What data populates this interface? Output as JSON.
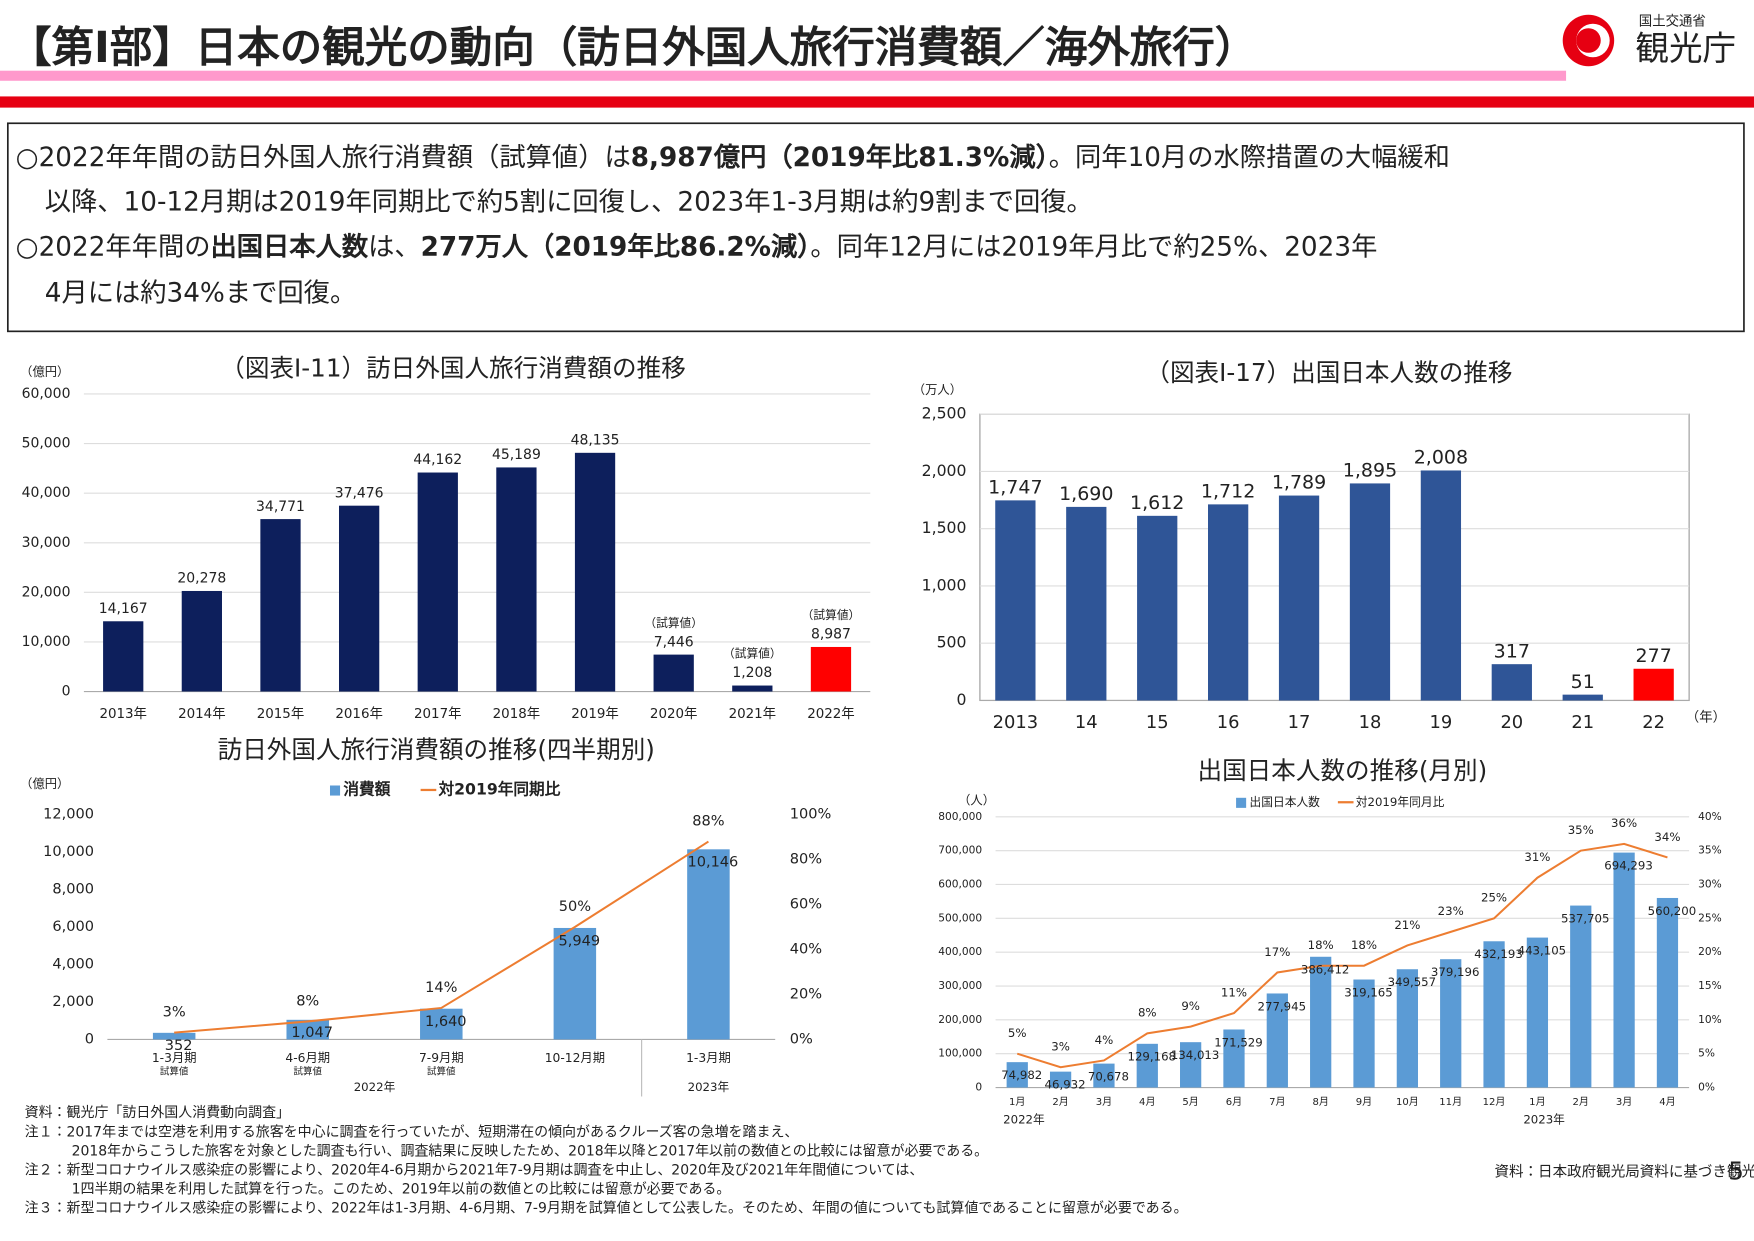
{
  "header": {
    "title": "【第Ⅰ部】日本の観光の動向（訪日外国人旅行消費額／海外旅行）",
    "ministry": "国土交通省",
    "agency": "観光庁"
  },
  "summary": [
    [
      {
        "text": "○2022年年間の訪日外国人旅行消費額（試算値）は"
      },
      {
        "text": "8,987億円（2019年比81.3%減）",
        "bold": true
      },
      {
        "text": "。同年10月の水際措置の大幅緩和"
      }
    ],
    [
      {
        "text": "以降、10-12月期は2019年同期比で約5割に回復し、2023年1-3月期は約9割まで回復。"
      }
    ],
    [
      {
        "text": "○2022年年間の"
      },
      {
        "text": "出国日本人数",
        "bold": true
      },
      {
        "text": "は、"
      },
      {
        "text": "277万人（2019年比86.2%減）",
        "bold": true
      },
      {
        "text": "。同年12月には2019年月比で約25%、2023年"
      }
    ],
    [
      {
        "text": "4月には約34%まで回復。"
      }
    ]
  ],
  "chart_data": [
    {
      "type": "bar",
      "title": "（図表Ⅰ-11）訪日外国人旅行消費額の推移",
      "y_label": "（億円）",
      "categories": [
        "2013年",
        "2014年",
        "2015年",
        "2016年",
        "2017年",
        "2018年",
        "2019年",
        "2020年",
        "2021年",
        "2022年"
      ],
      "values": [
        14167,
        20278,
        34771,
        37476,
        44162,
        45189,
        48135,
        7446,
        1208,
        8987
      ],
      "value_labels": [
        "14,167",
        "20,278",
        "34,771",
        "37,476",
        "44,162",
        "45,189",
        "48,135",
        "7,446",
        "1,208",
        "8,987"
      ],
      "point_notes": [
        null,
        null,
        null,
        null,
        null,
        null,
        null,
        "（試算値）",
        "（試算値）",
        "（試算値）"
      ],
      "colors": [
        "#0d1f5c",
        "#0d1f5c",
        "#0d1f5c",
        "#0d1f5c",
        "#0d1f5c",
        "#0d1f5c",
        "#0d1f5c",
        "#0d1f5c",
        "#0d1f5c",
        "#ff0000"
      ],
      "ylim": [
        0,
        60000
      ],
      "yticks": [
        0,
        {
          "value": 10000,
          "label": "10,000"
        },
        {
          "value": 20000,
          "label": "20,000"
        },
        {
          "value": 30000,
          "label": "30,000"
        },
        {
          "value": 40000,
          "label": "40,000"
        },
        {
          "value": 50000,
          "label": "50,000"
        },
        {
          "value": 60000,
          "label": "60,000"
        }
      ],
      "grid": true
    },
    {
      "type": "combo",
      "title": "訪日外国人旅行消費額の推移(四半期別)",
      "y_label": "（億円）",
      "categories": [
        "1-3月期",
        "4-6月期",
        "7-9月期",
        "10-12月期",
        "1-3月期"
      ],
      "sublabels": [
        "試算値",
        "試算値",
        "試算値",
        null,
        null
      ],
      "group_labels": [
        "2022年",
        null,
        null,
        null,
        "2023年"
      ],
      "series": [
        {
          "name": "消費額",
          "type": "bar",
          "color": "#5b9bd5",
          "values": [
            352,
            1047,
            1640,
            5949,
            10146
          ],
          "value_labels": [
            "352",
            "1,047",
            "1,640",
            "5,949",
            "10,146"
          ]
        },
        {
          "name": "対2019年同期比",
          "type": "line",
          "axis": "y2",
          "color": "#ed7d31",
          "values": [
            3,
            8,
            14,
            50,
            88
          ],
          "value_labels": [
            "3%",
            "8%",
            "14%",
            "50%",
            "88%"
          ]
        }
      ],
      "ylim": [
        0,
        12000
      ],
      "yticks": [
        0,
        {
          "value": 2000,
          "label": "2,000"
        },
        {
          "value": 4000,
          "label": "4,000"
        },
        {
          "value": 6000,
          "label": "6,000"
        },
        {
          "value": 8000,
          "label": "8,000"
        },
        {
          "value": 10000,
          "label": "10,000"
        },
        {
          "value": 12000,
          "label": "12,000"
        }
      ],
      "y2lim": [
        0,
        100
      ],
      "y2ticks": [
        {
          "value": 0,
          "label": "0%"
        },
        {
          "value": 20,
          "label": "20%"
        },
        {
          "value": 40,
          "label": "40%"
        },
        {
          "value": 60,
          "label": "60%"
        },
        {
          "value": 80,
          "label": "80%"
        },
        {
          "value": 100,
          "label": "100%"
        }
      ],
      "grid": false
    },
    {
      "type": "bar",
      "title": "（図表Ⅰ-17）出国日本人数の推移",
      "y_label": "（万人）",
      "x_label": "（年）",
      "categories": [
        "2013",
        "14",
        "15",
        "16",
        "17",
        "18",
        "19",
        "20",
        "21",
        "22"
      ],
      "values": [
        1747,
        1690,
        1612,
        1712,
        1789,
        1895,
        2008,
        317,
        51,
        277
      ],
      "value_labels": [
        "1,747",
        "1,690",
        "1,612",
        "1,712",
        "1,789",
        "1,895",
        "2,008",
        "317",
        "51",
        "277"
      ],
      "colors": [
        "#2f5597",
        "#2f5597",
        "#2f5597",
        "#2f5597",
        "#2f5597",
        "#2f5597",
        "#2f5597",
        "#2f5597",
        "#2f5597",
        "#ff0000"
      ],
      "ylim": [
        0,
        2500
      ],
      "yticks": [
        0,
        500,
        {
          "value": 1000,
          "label": "1,000"
        },
        {
          "value": 1500,
          "label": "1,500"
        },
        {
          "value": 2000,
          "label": "2,000"
        },
        {
          "value": 2500,
          "label": "2,500"
        }
      ],
      "grid": true
    },
    {
      "type": "combo",
      "title": "出国日本人数の推移(月別)",
      "y_label": "（人）",
      "categories": [
        "1月",
        "2月",
        "3月",
        "4月",
        "5月",
        "6月",
        "7月",
        "8月",
        "9月",
        "10月",
        "11月",
        "12月",
        "1月",
        "2月",
        "3月",
        "4月"
      ],
      "group_labels": [
        "2022年",
        null,
        null,
        null,
        null,
        null,
        null,
        null,
        null,
        null,
        null,
        null,
        "2023年",
        null,
        null,
        null
      ],
      "series": [
        {
          "name": "出国日本人数",
          "type": "bar",
          "color": "#5b9bd5",
          "values": [
            74982,
            46932,
            70678,
            129168,
            134013,
            171529,
            277945,
            386412,
            319165,
            349557,
            379196,
            432193,
            443105,
            537705,
            694293,
            560200
          ],
          "value_labels": [
            "74,982",
            "46,932",
            "70,678",
            "129,168",
            "134,013",
            "171,529",
            "277,945",
            "386,412",
            "319,165",
            "349,557",
            "379,196",
            "432,193",
            "443,105",
            "537,705",
            "694,293",
            "560,200"
          ]
        },
        {
          "name": "対2019年同月比",
          "type": "line",
          "axis": "y2",
          "color": "#ed7d31",
          "values": [
            5,
            3,
            4,
            8,
            9,
            11,
            17,
            18,
            18,
            21,
            23,
            25,
            31,
            35,
            36,
            34
          ],
          "value_labels": [
            "5%",
            "3%",
            "4%",
            "8%",
            "9%",
            "11%",
            "17%",
            "18%",
            "18%",
            "21%",
            "23%",
            "25%",
            "31%",
            "35%",
            "36%",
            "34%"
          ]
        }
      ],
      "ylim": [
        0,
        800000
      ],
      "yticks": [
        0,
        {
          "value": 100000,
          "label": "100,000"
        },
        {
          "value": 200000,
          "label": "200,000"
        },
        {
          "value": 300000,
          "label": "300,000"
        },
        {
          "value": 400000,
          "label": "400,000"
        },
        {
          "value": 500000,
          "label": "500,000"
        },
        {
          "value": 600000,
          "label": "600,000"
        },
        {
          "value": 700000,
          "label": "700,000"
        },
        {
          "value": 800000,
          "label": "800,000"
        }
      ],
      "y2lim": [
        0,
        40
      ],
      "y2ticks": [
        {
          "value": 0,
          "label": "0%"
        },
        {
          "value": 5,
          "label": "5%"
        },
        {
          "value": 10,
          "label": "10%"
        },
        {
          "value": 15,
          "label": "15%"
        },
        {
          "value": 20,
          "label": "20%"
        },
        {
          "value": 25,
          "label": "25%"
        },
        {
          "value": 30,
          "label": "30%"
        },
        {
          "value": 35,
          "label": "35%"
        },
        {
          "value": 40,
          "label": "40%"
        }
      ],
      "grid": true
    }
  ],
  "notes": [
    [
      "資料：観光庁「訪日外国人消費動向調査」"
    ],
    [
      "注１：2017年までは空港を利用する旅客を中心に調査を行っていたが、短期滞在の傾向があるクルーズ客の急増を踏まえ、",
      "2018年からこうした旅客を対象とした調査も行い、調査結果に反映したため、2018年以降と2017年以前の数値との比較には留意が必要である。"
    ],
    [
      "注２：新型コロナウイルス感染症の影響により、2020年4-6月期から2021年7-9月期は調査を中止し、2020年及び2021年年間値については、",
      "1四半期の結果を利用した試算を行った。このため、2019年以前の数値との比較には留意が必要である。"
    ],
    [
      "注３：新型コロナウイルス感染症の影響により、2022年は1-3月期、4-6月期、7-9月期を試算値として公表した。そのため、年間の値についても試算値であることに留意が必要である。"
    ]
  ],
  "source": "資料：日本政府観光局資料に基づき観光庁作成",
  "page_number": "5"
}
